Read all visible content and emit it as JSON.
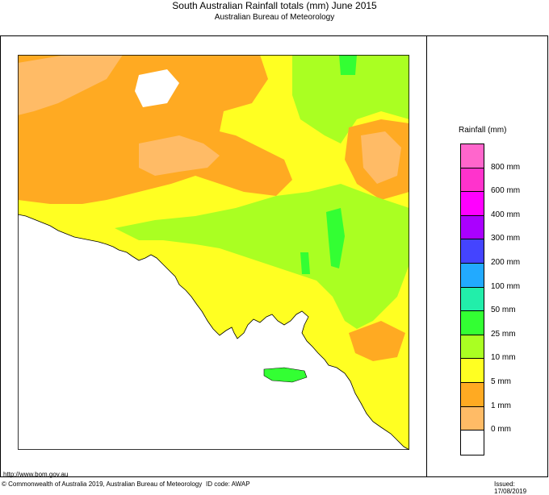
{
  "header": {
    "title": "South Australian Rainfall totals (mm)   June 2015",
    "subtitle": "Australian Bureau of Meteorology"
  },
  "legend": {
    "title": "Rainfall (mm)",
    "swatches": [
      "#ff66cc",
      "#ff33cc",
      "#ff00ff",
      "#aa00ff",
      "#4444ff",
      "#22aaff",
      "#22eeaa",
      "#33ff33",
      "#aaff22",
      "#ffff22",
      "#ffaa22",
      "#ffbb66",
      "#ffffff"
    ],
    "labels": [
      "800 mm",
      "600 mm",
      "400 mm",
      "300 mm",
      "200 mm",
      "100 mm",
      "50 mm",
      "25 mm",
      "10 mm",
      "5 mm",
      "1 mm",
      "0 mm"
    ]
  },
  "footer": {
    "url": "http://www.bom.gov.au",
    "copyright": "© Commonwealth of Australia 2019, Australian Bureau of Meteorology",
    "id_code": "ID code: AWAP",
    "issued": "Issued: 17/08/2019"
  }
}
